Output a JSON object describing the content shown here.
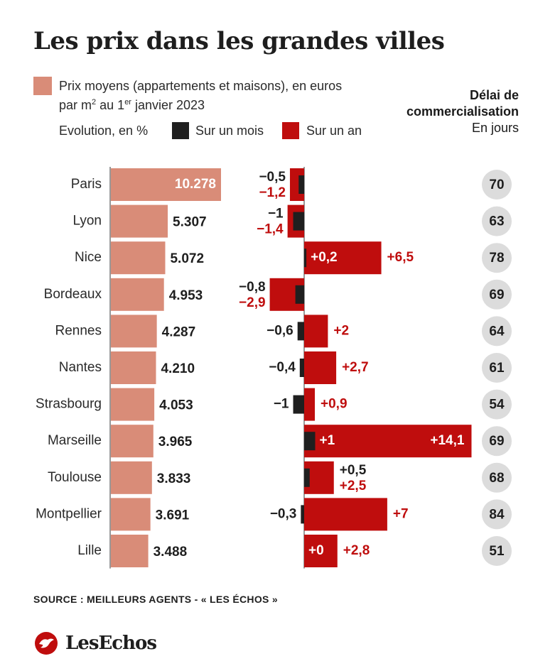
{
  "title": "Les prix dans les grandes villes",
  "legend": {
    "price_line1": "Prix moyens (appartements et maisons), en euros",
    "price_line2_pre": "par m",
    "price_line2_sup1": "2",
    "price_line2_mid": " au 1",
    "price_line2_sup2": "er",
    "price_line2_post": " janvier 2023",
    "evolution_label": "Evolution, en %",
    "month_label": "Sur un mois",
    "year_label": "Sur un an"
  },
  "right_header": {
    "line1": "Délai de",
    "line2": "commercialisation",
    "line3": "En jours"
  },
  "colors": {
    "price": "#d98c78",
    "month": "#1f1f1f",
    "year": "#bf0d0d",
    "circle": "#dcdcdc",
    "price_label_inside": "#ffffff"
  },
  "chart_data": {
    "type": "bar",
    "categories": [
      "Paris",
      "Lyon",
      "Nice",
      "Bordeaux",
      "Rennes",
      "Nantes",
      "Strasbourg",
      "Marseille",
      "Toulouse",
      "Montpellier",
      "Lille"
    ],
    "series": [
      {
        "name": "Prix moyens (appartements et maisons), en euros par m² au 1er janvier 2023",
        "values": [
          10278,
          5307,
          5072,
          4953,
          4287,
          4210,
          4053,
          3965,
          3833,
          3691,
          3488
        ],
        "labels": [
          "10.278",
          "5.307",
          "5.072",
          "4.953",
          "4.287",
          "4.210",
          "4.053",
          "3.965",
          "3.833",
          "3.691",
          "3.488"
        ]
      },
      {
        "name": "Sur un mois",
        "values": [
          -0.5,
          -1,
          0.2,
          -0.8,
          -0.6,
          -0.4,
          -1,
          1,
          0.5,
          -0.3,
          0
        ],
        "labels": [
          "−0,5",
          "−1",
          "+0,2",
          "−0,8",
          "−0,6",
          "−0,4",
          "−1",
          "+1",
          "+0,5",
          "−0,3",
          "+0"
        ]
      },
      {
        "name": "Sur un an",
        "values": [
          -1.2,
          -1.4,
          6.5,
          -2.9,
          2,
          2.7,
          0.9,
          14.1,
          2.5,
          7,
          2.8
        ],
        "labels": [
          "−1,2",
          "−1,4",
          "+6,5",
          "−2,9",
          "+2",
          "+2,7",
          "+0,9",
          "+14,1",
          "+2,5",
          "+7",
          "+2,8"
        ]
      },
      {
        "name": "Délai de commercialisation",
        "values": [
          70,
          63,
          78,
          69,
          64,
          61,
          54,
          69,
          68,
          84,
          51
        ]
      }
    ]
  },
  "source": "SOURCE : MEILLEURS AGENTS - « LES ÉCHOS »",
  "logo": "LesEchos"
}
